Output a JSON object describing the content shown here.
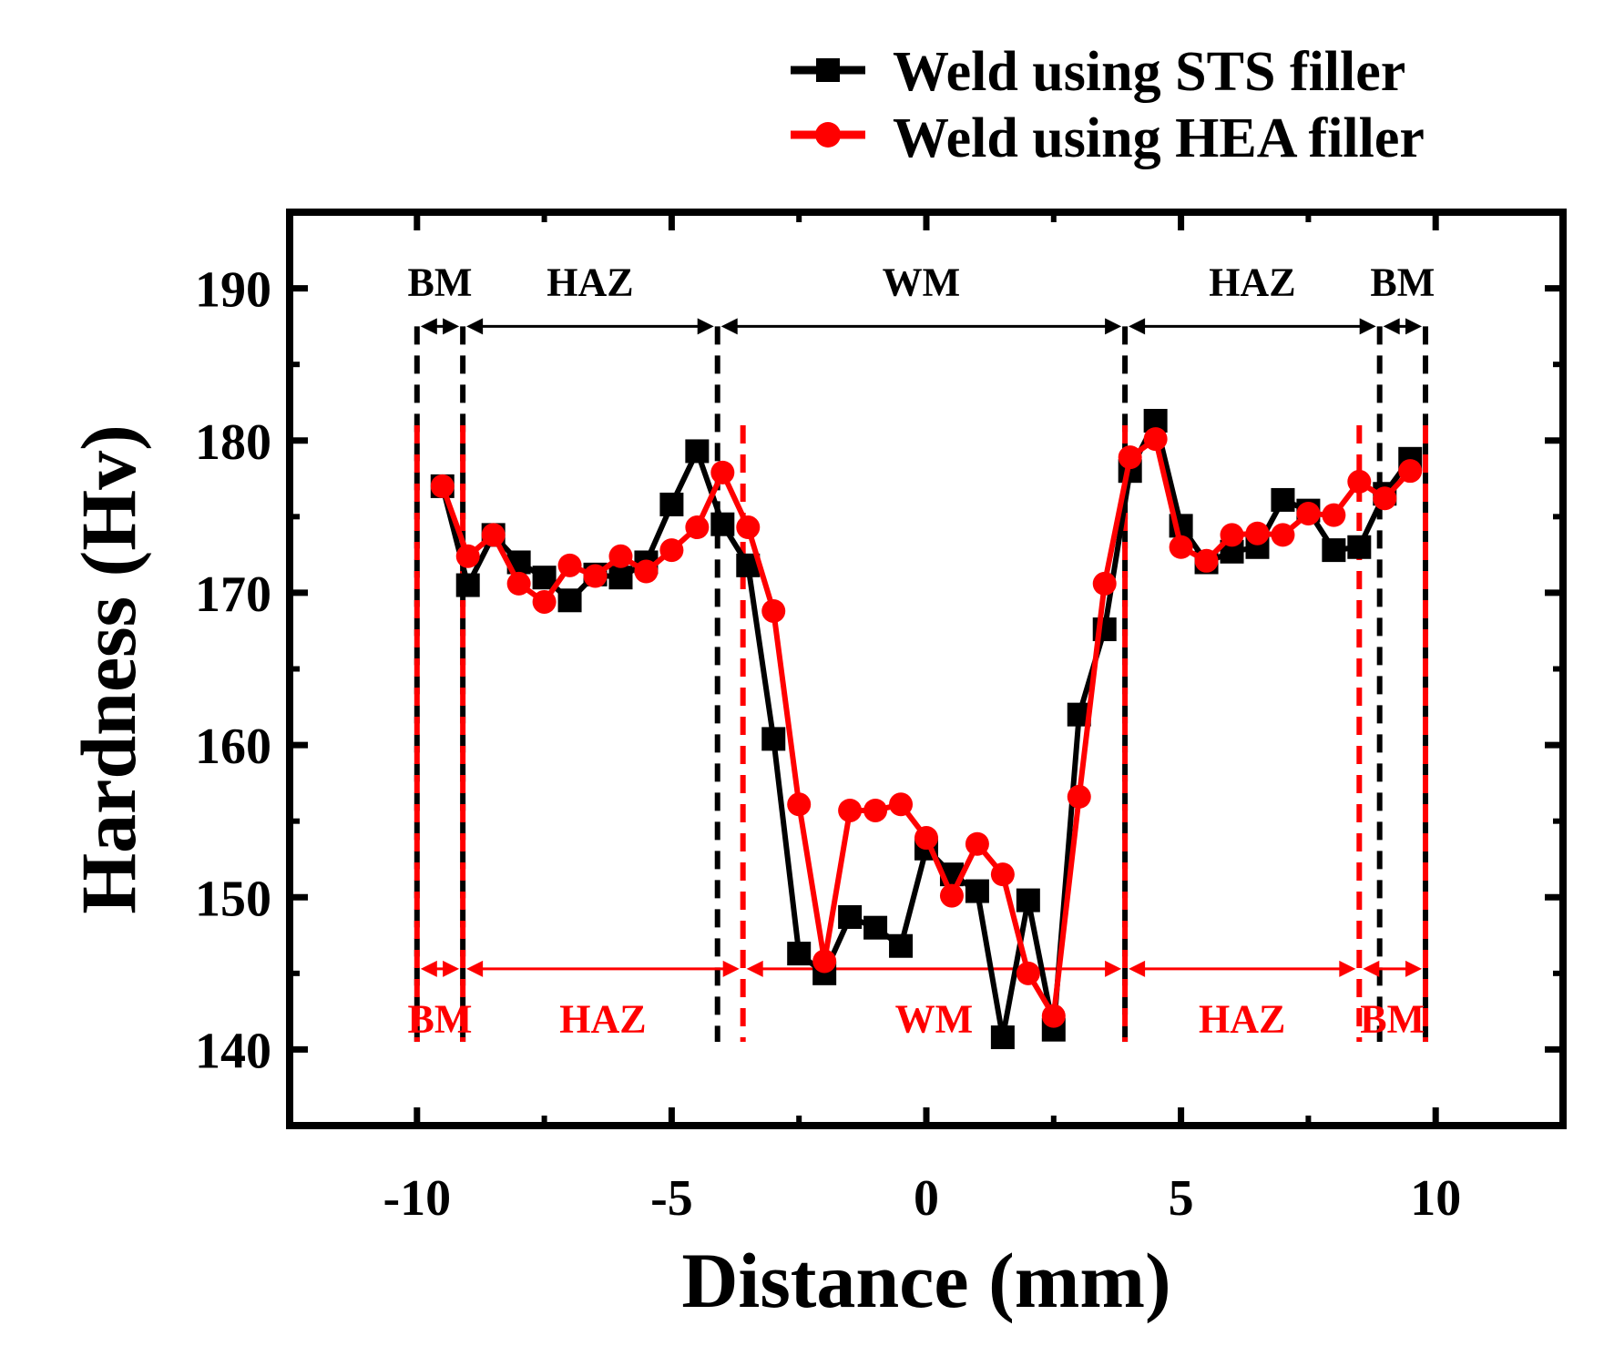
{
  "chart_data": {
    "type": "line",
    "xlabel": "Distance (mm)",
    "ylabel": "Hardness (Hv)",
    "xlim": [
      -12.5,
      12.5
    ],
    "ylim": [
      135,
      195
    ],
    "xticks": [
      -10,
      -5,
      0,
      5,
      10
    ],
    "yticks": [
      140,
      150,
      160,
      170,
      180,
      190
    ],
    "xtick_labels": [
      "-10",
      "-5",
      "0",
      "5",
      "10"
    ],
    "ytick_labels": [
      "140",
      "150",
      "160",
      "170",
      "180",
      "190"
    ],
    "legend_position": "top-right",
    "series": [
      {
        "name": "Weld using STS filler",
        "color": "#000000",
        "marker": "square",
        "x": [
          -9.5,
          -9,
          -8.5,
          -8,
          -7.5,
          -7,
          -6.5,
          -6,
          -5.5,
          -5,
          -4.5,
          -4,
          -3.5,
          -3,
          -2.5,
          -2,
          -1.5,
          -1,
          -0.5,
          0,
          0.5,
          1,
          1.5,
          2,
          2.5,
          3,
          3.5,
          4,
          4.5,
          5,
          5.5,
          6,
          6.5,
          7,
          7.5,
          8,
          8.5,
          9,
          9.5
        ],
        "y": [
          177,
          170.5,
          173.8,
          172,
          171,
          169.5,
          171.2,
          171,
          172,
          175.8,
          179.3,
          174.5,
          171.8,
          160.4,
          146.3,
          145,
          148.7,
          148,
          146.8,
          153.2,
          151.5,
          150.4,
          140.8,
          149.8,
          141.3,
          162,
          167.6,
          178,
          181.3,
          174.4,
          172,
          172.7,
          173,
          176.1,
          175.4,
          172.8,
          173,
          176.5,
          178.8
        ]
      },
      {
        "name": "Weld using HEA filler",
        "color": "#ff0000",
        "marker": "circle",
        "x": [
          -9.5,
          -9,
          -8.5,
          -8,
          -7.5,
          -7,
          -6.5,
          -6,
          -5.5,
          -5,
          -4.5,
          -4,
          -3.5,
          -3,
          -2.5,
          -2,
          -1.5,
          -1,
          -0.5,
          0,
          0.5,
          1,
          1.5,
          2,
          2.5,
          3,
          3.5,
          4,
          4.5,
          5,
          5.5,
          6,
          6.5,
          7,
          7.5,
          8,
          8.5,
          9,
          9.5
        ],
        "y": [
          177,
          172.4,
          173.8,
          170.6,
          169.4,
          171.8,
          171.1,
          172.4,
          171.4,
          172.8,
          174.3,
          177.9,
          174.3,
          168.8,
          156.1,
          145.8,
          155.7,
          155.7,
          156.1,
          153.9,
          150.1,
          153.5,
          151.5,
          145,
          142.2,
          156.6,
          170.6,
          178.9,
          180.1,
          173,
          172.1,
          173.8,
          173.9,
          173.8,
          175.2,
          175.1,
          177.3,
          176.2,
          178
        ]
      }
    ],
    "zones_sts": {
      "boundaries": [
        -10,
        -9.1,
        -4.1,
        3.9,
        8.9,
        9.8
      ],
      "labels": [
        "BM",
        "HAZ",
        "WM",
        "HAZ",
        "BM"
      ],
      "color": "#000000",
      "arrow_level": 187.5,
      "label_level": 190.6
    },
    "zones_hea": {
      "boundaries": [
        -10,
        -9.1,
        -3.6,
        3.9,
        8.5,
        9.8
      ],
      "labels": [
        "BM",
        "HAZ",
        "WM",
        "HAZ",
        "BM"
      ],
      "color": "#ff0000",
      "arrow_level": 145.3,
      "label_level": 142.2
    }
  }
}
